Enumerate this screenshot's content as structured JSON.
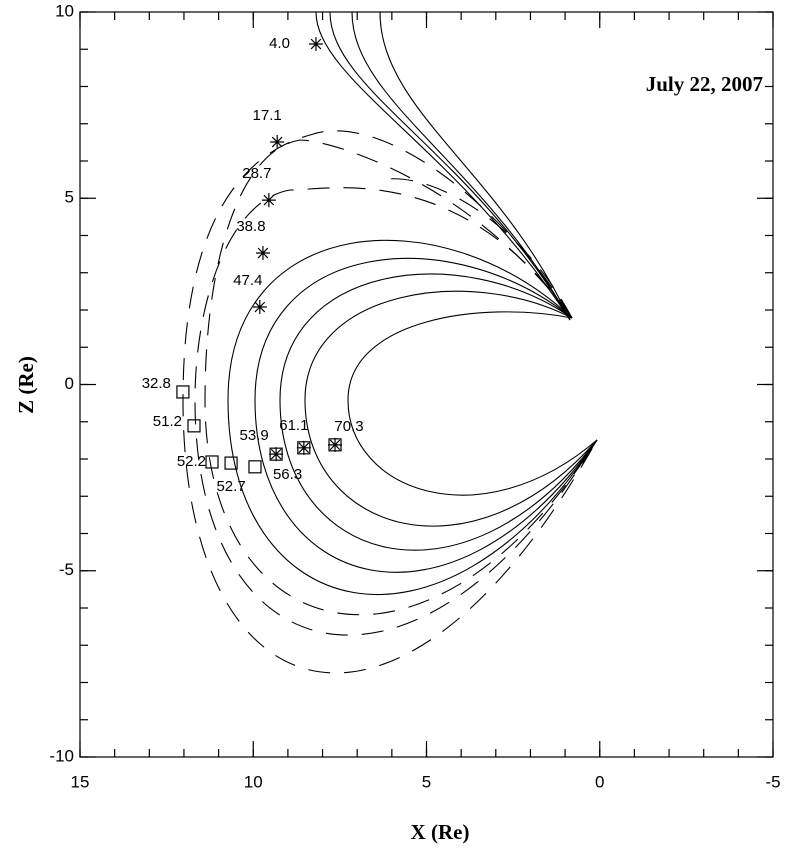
{
  "chart_data": {
    "type": "scatter",
    "title": "July 22, 2007",
    "xlabel": "X (Re)",
    "ylabel": "Z (Re)",
    "xlim": [
      15,
      -5
    ],
    "ylim": [
      -10,
      10
    ],
    "xticks": [
      15,
      10,
      5,
      0,
      -5
    ],
    "yticks": [
      -10,
      -5,
      0,
      5,
      10
    ],
    "series": [
      {
        "marker": "star",
        "color": "#000000",
        "x": [
          8.19,
          9.31,
          9.55,
          9.72,
          9.81
        ],
        "values": [
          9.14,
          6.51,
          4.95,
          3.53,
          2.08
        ],
        "point_labels": [
          "4.0",
          "17.1",
          "28.7",
          "38.8",
          "47.4"
        ]
      },
      {
        "marker": "square",
        "color": "#000000",
        "markers": [
          "square",
          "square",
          "square",
          "square",
          "square",
          "square+star",
          "square+star",
          "square+star"
        ],
        "x": [
          12.03,
          11.71,
          11.19,
          10.64,
          9.95,
          9.34,
          8.54,
          7.64
        ],
        "values": [
          -0.2,
          -1.11,
          -2.08,
          -2.11,
          -2.21,
          -1.87,
          -1.7,
          -1.62
        ],
        "point_labels": [
          "32.8",
          "51.2",
          "52.2",
          "52.7",
          "56.3",
          "53.9",
          "61.1",
          "70.3"
        ]
      }
    ]
  }
}
